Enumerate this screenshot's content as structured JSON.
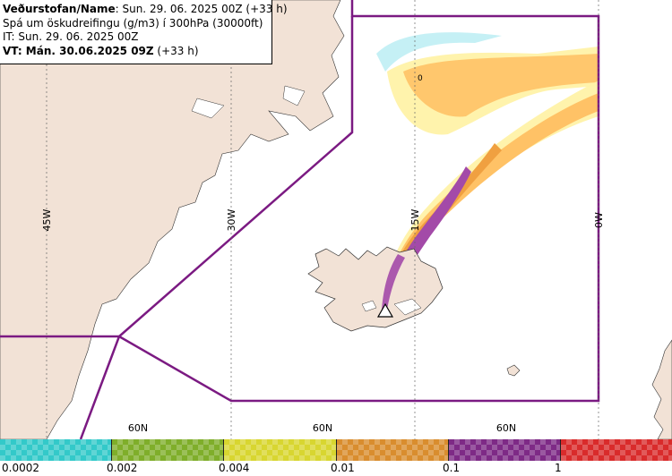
{
  "info": {
    "line1_label": "Veðurstofan/Name",
    "line1_value": ": Sun. 29. 06. 2025 00Z (+33 h)",
    "line2": "Spá um öskudreifingu (g/m3) í 300hPa (30000ft)",
    "line3": "IT: Sun. 29. 06. 2025 00Z",
    "line4_label": "VT: Mán. 30.06.2025 09Z",
    "line4_value": " (+33 h)"
  },
  "map": {
    "meridian_labels": [
      "45W",
      "30W",
      "15W",
      "0W"
    ],
    "parallel_labels": [
      "60N",
      "60N",
      "60N"
    ],
    "plume_marker": "0",
    "colors": {
      "land": "#f2e2d6",
      "region_line": "#7b1a82",
      "plume_light": "#fff2a8",
      "plume_mid": "#ffc266",
      "plume_orange": "#f0a040",
      "plume_purple": "#a34aa8",
      "plume_edge_cyan": "#9ee6ee"
    }
  },
  "legend": {
    "labels": [
      "0.0002",
      "0.002",
      "0.004",
      "0.01",
      "0.1",
      "1"
    ],
    "colors": [
      "#33c9c9",
      "#7fae2a",
      "#d8d630",
      "#d98d2e",
      "#7e2a86",
      "#d92b2b"
    ]
  }
}
